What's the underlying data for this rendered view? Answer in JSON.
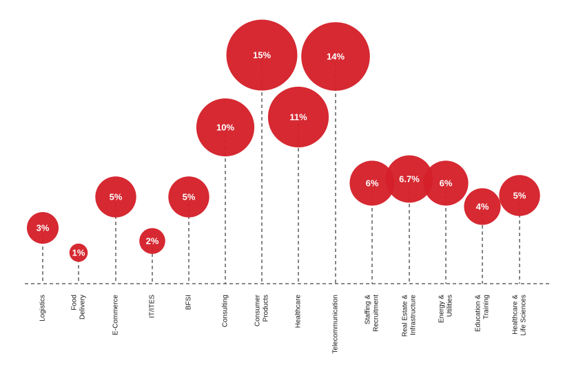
{
  "chart_data": {
    "type": "bubble",
    "title": "",
    "xlabel": "",
    "ylabel": "",
    "grid": false,
    "legend": "none",
    "bubble_color": "#d4202a",
    "stem_color": "#444444",
    "categories": [
      {
        "lines": [
          "Logistics"
        ]
      },
      {
        "lines": [
          "Food",
          "Delivery"
        ]
      },
      {
        "lines": [
          "E-Commerce"
        ]
      },
      {
        "lines": [
          "IT/ITES"
        ]
      },
      {
        "lines": [
          "BFSI"
        ]
      },
      {
        "lines": [
          "Consulting"
        ]
      },
      {
        "lines": [
          "Consumer",
          "Products"
        ]
      },
      {
        "lines": [
          "Healthcare"
        ]
      },
      {
        "lines": [
          "Telecommunication"
        ]
      },
      {
        "lines": [
          "Staffing &",
          "Recruitment"
        ]
      },
      {
        "lines": [
          "Real Estate &",
          "Infrastructure"
        ]
      },
      {
        "lines": [
          "Energy &",
          "Utilities"
        ]
      },
      {
        "lines": [
          "Education &",
          "Training"
        ]
      },
      {
        "lines": [
          "Healthcare &",
          "Life Sciences"
        ]
      }
    ],
    "values": [
      3,
      1,
      5,
      2,
      5,
      10,
      15,
      11,
      14,
      6,
      6.7,
      6,
      4,
      5
    ],
    "value_labels": [
      "3%",
      "1%",
      "5%",
      "2%",
      "5%",
      "10%",
      "15%",
      "11%",
      "14%",
      "6%",
      "6.7%",
      "6%",
      "4%",
      "5%"
    ]
  }
}
